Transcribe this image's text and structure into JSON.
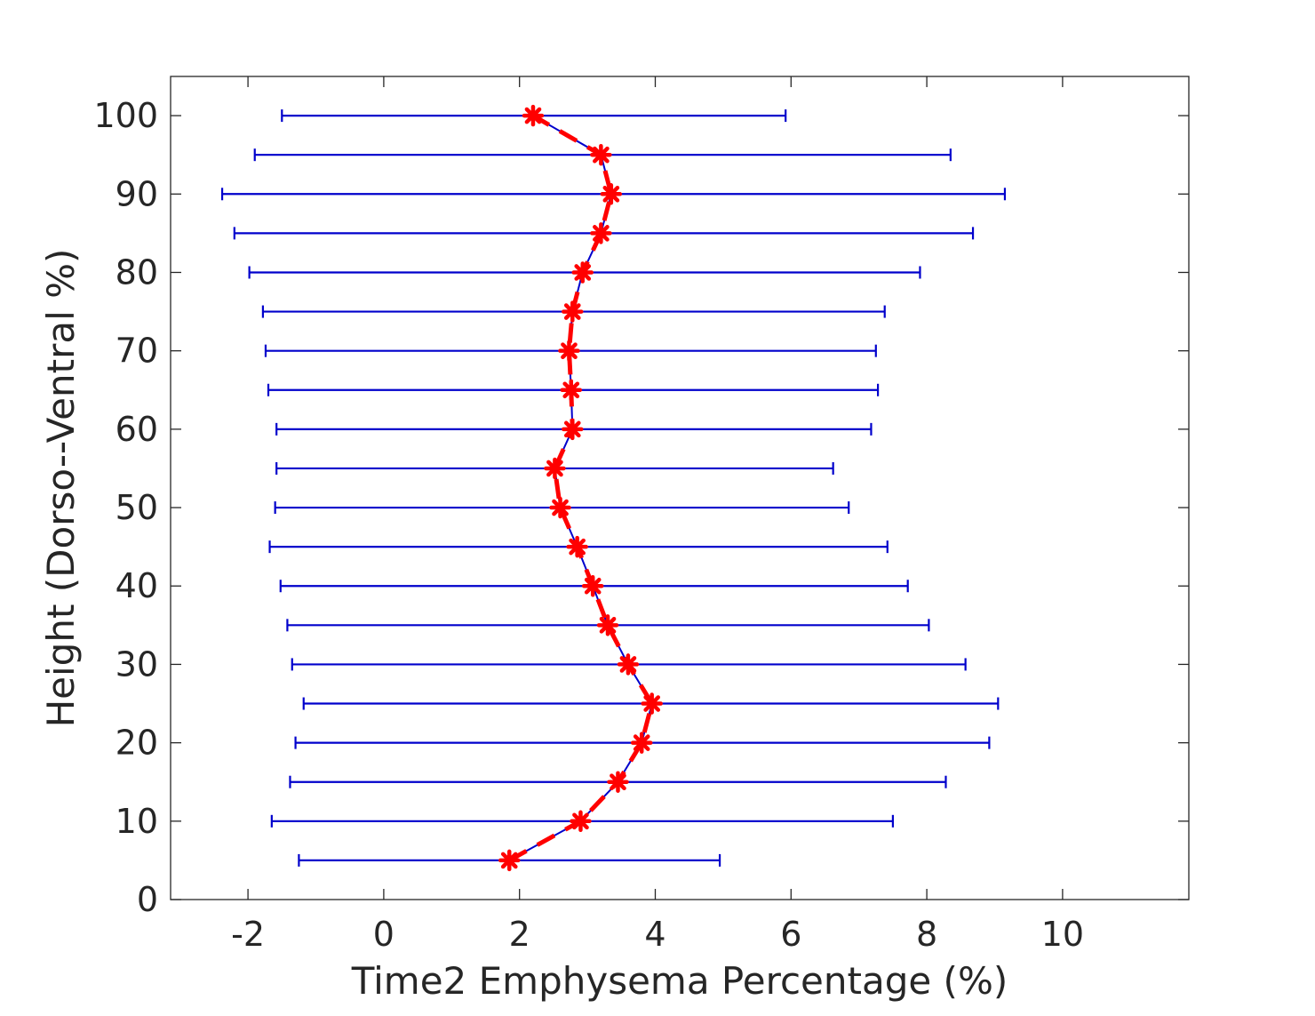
{
  "chart_data": {
    "type": "scatter",
    "title": "",
    "xlabel": "Time2 Emphysema Percentage (%)",
    "ylabel": "Height (Dorso--Ventral %)",
    "xlim": [
      -3.14,
      11.86
    ],
    "ylim": [
      0,
      105
    ],
    "xticks": [
      -2,
      0,
      2,
      4,
      6,
      8,
      10
    ],
    "yticks": [
      0,
      10,
      20,
      30,
      40,
      50,
      60,
      70,
      80,
      90,
      100
    ],
    "grid": false,
    "legend": "none",
    "colors": {
      "errorbar": "#0000cc",
      "mean_line": "#0000cc",
      "marker": "#ff0000",
      "trend": "#ff0000",
      "axes": "#262626"
    },
    "series": [
      {
        "marker": "asterisk",
        "y": [
          5,
          10,
          15,
          20,
          25,
          30,
          35,
          40,
          45,
          50,
          55,
          60,
          65,
          70,
          75,
          80,
          85,
          90,
          95,
          100
        ],
        "x": [
          1.85,
          2.9,
          3.45,
          3.8,
          3.95,
          3.6,
          3.3,
          3.08,
          2.85,
          2.6,
          2.52,
          2.78,
          2.76,
          2.73,
          2.78,
          2.93,
          3.2,
          3.35,
          3.2,
          2.2
        ],
        "xmin": [
          -1.25,
          -1.65,
          -1.38,
          -1.3,
          -1.18,
          -1.35,
          -1.42,
          -1.52,
          -1.68,
          -1.6,
          -1.58,
          -1.58,
          -1.7,
          -1.74,
          -1.78,
          -1.98,
          -2.2,
          -2.38,
          -1.9,
          -1.5
        ],
        "xmax": [
          4.95,
          7.5,
          8.28,
          8.92,
          9.05,
          8.57,
          8.03,
          7.72,
          7.42,
          6.85,
          6.62,
          7.18,
          7.28,
          7.25,
          7.38,
          7.9,
          8.68,
          9.15,
          8.35,
          5.92
        ]
      }
    ]
  }
}
